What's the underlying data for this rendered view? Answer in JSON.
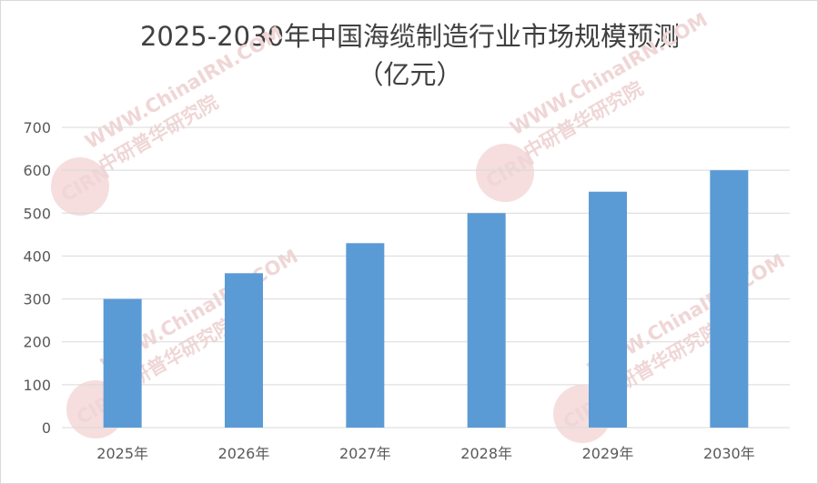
{
  "chart_data": {
    "type": "bar",
    "title_lines": [
      "2025-2030年中国海缆制造行业市场规模预测",
      "（亿元）"
    ],
    "categories": [
      "2025年",
      "2026年",
      "2027年",
      "2028年",
      "2029年",
      "2030年"
    ],
    "values": [
      300,
      360,
      430,
      500,
      550,
      600
    ],
    "y_ticks": [
      "0",
      "100",
      "200",
      "300",
      "400",
      "500",
      "600",
      "700"
    ],
    "ylim": [
      0,
      700
    ],
    "grid": true,
    "legend": "none",
    "bar_color": "#5b9bd5",
    "xlabel": "",
    "ylabel": ""
  },
  "watermark": {
    "url": "WWW.ChinaIRN.COM",
    "text": "中研普华研究院",
    "logo": "CIRN"
  }
}
